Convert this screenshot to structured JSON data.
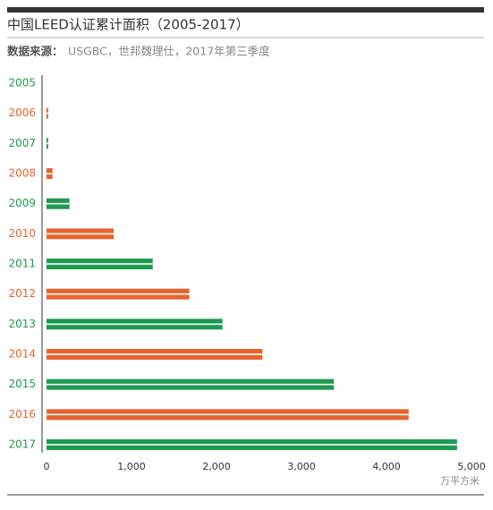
{
  "chart_data": {
    "type": "bar",
    "orientation": "horizontal",
    "title": "中国LEED认证累计面积（2005-2017）",
    "source_label": "数据来源：",
    "source_text": "USGBC，世邦魏理仕，2017年第三季度",
    "x_axis_label": "万平方米",
    "categories": [
      "2005",
      "2006",
      "2007",
      "2008",
      "2009",
      "2010",
      "2011",
      "2012",
      "2013",
      "2014",
      "2015",
      "2016",
      "2017"
    ],
    "values": [
      0,
      20,
      20,
      70,
      270,
      790,
      1250,
      1680,
      2070,
      2540,
      3380,
      4260,
      4830
    ],
    "colors": [
      "#1e9a50",
      "#e8622c",
      "#1e9a50",
      "#e8622c",
      "#1e9a50",
      "#e8622c",
      "#1e9a50",
      "#e8622c",
      "#1e9a50",
      "#e8622c",
      "#1e9a50",
      "#e8622c",
      "#1e9a50"
    ],
    "xlim": [
      0,
      5000
    ],
    "xticks": [
      0,
      {
        "value": 1000,
        "label": "1,000"
      },
      {
        "value": 2000,
        "label": "2,000"
      },
      {
        "value": 3000,
        "label": "3,000"
      },
      {
        "value": 4000,
        "label": "4,000"
      },
      {
        "value": 5000,
        "label": "5,000"
      }
    ],
    "grid": false
  }
}
